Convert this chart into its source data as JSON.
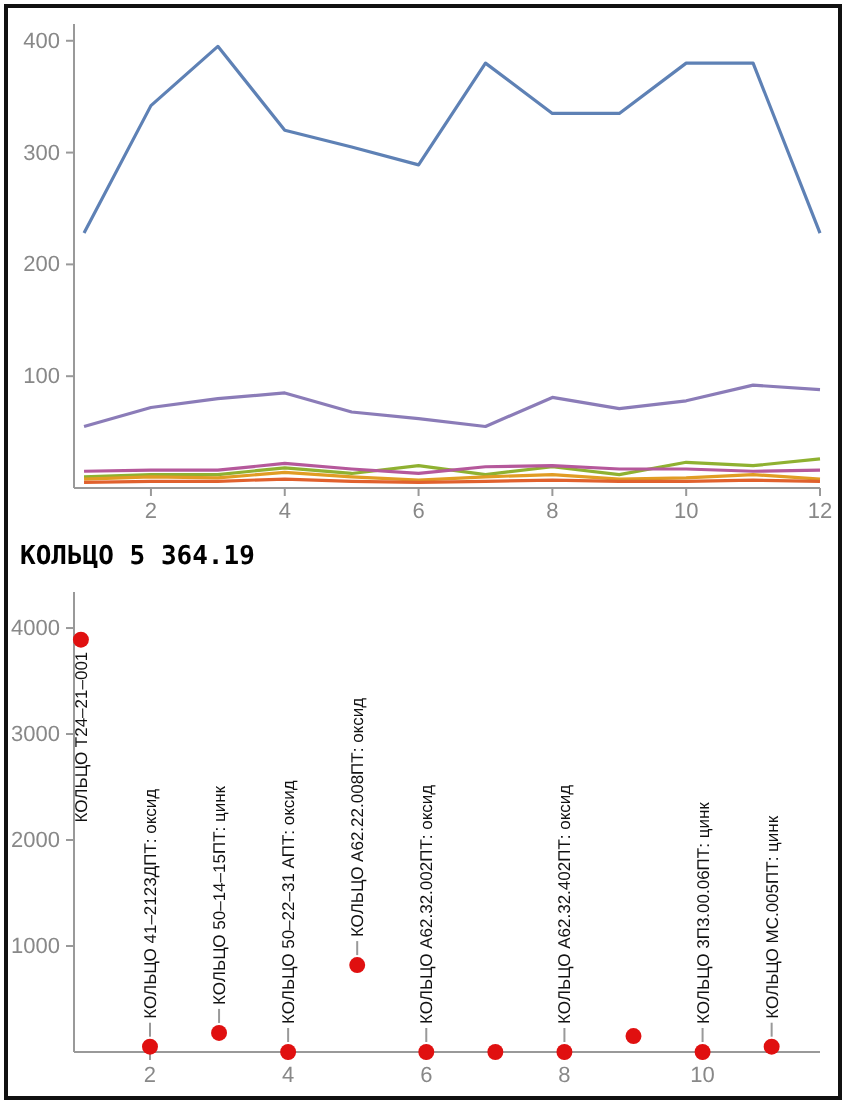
{
  "chart_data": [
    {
      "type": "line",
      "xlim": [
        0.85,
        12
      ],
      "ylim": [
        0,
        415
      ],
      "xticks": [
        2,
        4,
        6,
        8,
        10,
        12
      ],
      "yticks": [
        100,
        200,
        300,
        400
      ],
      "x": [
        1,
        2,
        3,
        4,
        5,
        6,
        7,
        8,
        9,
        10,
        11,
        12
      ],
      "series": [
        {
          "color": "#5e81b5",
          "values": [
            228,
            342,
            395,
            320,
            305,
            289,
            380,
            335,
            335,
            380,
            380,
            228
          ]
        },
        {
          "color": "#8b7cb8",
          "values": [
            55,
            72,
            80,
            85,
            68,
            62,
            55,
            81,
            71,
            78,
            92,
            88
          ]
        },
        {
          "color": "#8fb131",
          "values": [
            10,
            12,
            12,
            18,
            13,
            20,
            12,
            19,
            12,
            23,
            20,
            26
          ]
        },
        {
          "color": "#b5589b",
          "values": [
            15,
            16,
            16,
            22,
            17,
            13,
            19,
            20,
            17,
            17,
            15,
            16
          ]
        },
        {
          "color": "#e19c24",
          "values": [
            8,
            10,
            9,
            14,
            10,
            7,
            10,
            12,
            8,
            9,
            12,
            8
          ]
        },
        {
          "color": "#e0612e",
          "values": [
            5,
            6,
            6,
            8,
            6,
            5,
            6,
            7,
            6,
            6,
            7,
            6
          ]
        }
      ]
    },
    {
      "type": "scatter",
      "title": "КОЛЬЦО 5 364.19",
      "marker": "circle",
      "color": "#e01010",
      "x": [
        1,
        2,
        3,
        4,
        5,
        6,
        7,
        8,
        9,
        10,
        11
      ],
      "values": [
        3890,
        50,
        180,
        0,
        820,
        0,
        0,
        0,
        150,
        0,
        50
      ],
      "xlim": [
        0.9,
        11.7
      ],
      "ylim": [
        0,
        4340
      ],
      "xticks": [
        2,
        4,
        6,
        8,
        10
      ],
      "yticks": [
        1000,
        2000,
        3000,
        4000
      ],
      "annotations": [
        {
          "text": "КОЛЬЦО T24–21–001",
          "x": 1,
          "y": 3890
        },
        {
          "text": "КОЛЬЦО 41–2123ДПТ: оксид",
          "x": 2,
          "y": 50
        },
        {
          "text": "КОЛЬЦО 50–14–15ПТ: цинк",
          "x": 3,
          "y": 180
        },
        {
          "text": "КОЛЬЦО 50–22–31 АПТ: оксид",
          "x": 4,
          "y": 0
        },
        {
          "text": "КОЛЬЦО A62.22.008ПТ: оксид",
          "x": 5,
          "y": 820
        },
        {
          "text": "КОЛЬЦО A62.32.002ПТ: оксид",
          "x": 6,
          "y": 0
        },
        {
          "text": "КОЛЬЦО A62.32.402ПТ: оксид",
          "x": 8,
          "y": 0
        },
        {
          "text": "КОЛЬЦО 3П3.00.06ПТ: цинк",
          "x": 10,
          "y": 0
        },
        {
          "text": "КОЛЬЦО МС.005ПТ: цинк",
          "x": 11,
          "y": 50
        }
      ]
    }
  ]
}
